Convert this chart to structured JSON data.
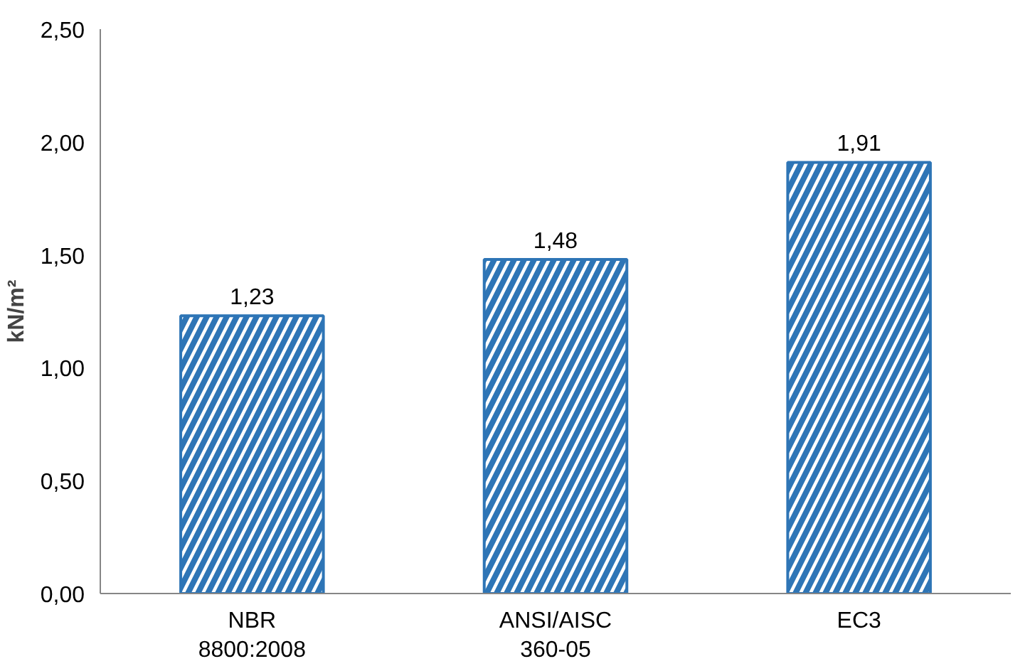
{
  "chart_data": {
    "type": "bar",
    "ylabel": "kN/m²",
    "categories": [
      "NBR\n8800:2008",
      "ANSI/AISC\n360-05",
      "EC3"
    ],
    "values": [
      1.23,
      1.48,
      1.91
    ],
    "color": "#2e75b6",
    "value_labels": [
      "1,23",
      "1,48",
      "1,91"
    ],
    "ylim": [
      0,
      2.5
    ],
    "yticks": [
      {
        "value": 0,
        "label": "0,00"
      },
      {
        "value": 0.5,
        "label": "0,50"
      },
      {
        "value": 1,
        "label": "1,00"
      },
      {
        "value": 1.5,
        "label": "1,50"
      },
      {
        "value": 2,
        "label": "2,00"
      },
      {
        "value": 2.5,
        "label": "2,50"
      }
    ],
    "grid": false
  }
}
